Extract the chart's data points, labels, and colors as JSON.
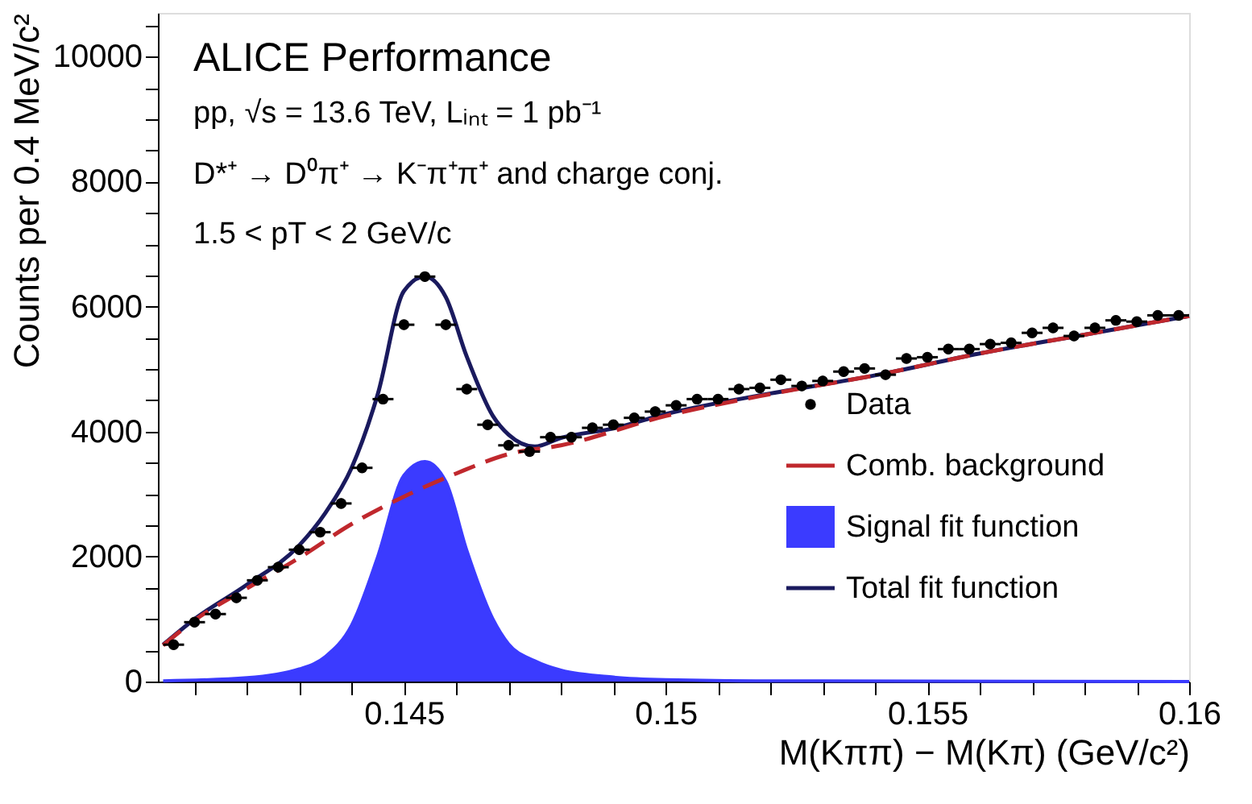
{
  "chart_data": {
    "type": "scatter",
    "xlabel": "M(Kππ) − M(Kπ) (GeV/c²)",
    "ylabel": "Counts per 0.4 MeV/c²",
    "annotations": [
      "ALICE Performance",
      "pp, √s = 13.6 TeV, Lᵢₙₜ = 1 pb⁻¹",
      "D*⁺ → D⁰π⁺ → K⁻π⁺π⁺ and charge conj.",
      "1.5 < pT < 2 GeV/c"
    ],
    "xlim": [
      0.1403,
      0.16
    ],
    "ylim": [
      0,
      10700
    ],
    "xticks": [
      {
        "value": 0.141,
        "label": null
      },
      {
        "value": 0.142,
        "label": null
      },
      {
        "value": 0.143,
        "label": null
      },
      {
        "value": 0.144,
        "label": null
      },
      0.145,
      {
        "value": 0.146,
        "label": null
      },
      {
        "value": 0.147,
        "label": null
      },
      {
        "value": 0.148,
        "label": null
      },
      {
        "value": 0.149,
        "label": null
      },
      0.15,
      {
        "value": 0.151,
        "label": null
      },
      {
        "value": 0.152,
        "label": null
      },
      {
        "value": 0.153,
        "label": null
      },
      {
        "value": 0.154,
        "label": null
      },
      0.155,
      {
        "value": 0.156,
        "label": null
      },
      {
        "value": 0.157,
        "label": null
      },
      {
        "value": 0.158,
        "label": null
      },
      {
        "value": 0.159,
        "label": null
      },
      0.16
    ],
    "yticks": [
      0,
      {
        "value": 500,
        "label": null
      },
      {
        "value": 1000,
        "label": null
      },
      {
        "value": 1500,
        "label": null
      },
      2000,
      {
        "value": 2500,
        "label": null
      },
      {
        "value": 3000,
        "label": null
      },
      {
        "value": 3500,
        "label": null
      },
      4000,
      {
        "value": 4500,
        "label": null
      },
      {
        "value": 5000,
        "label": null
      },
      {
        "value": 5500,
        "label": null
      },
      6000,
      {
        "value": 6500,
        "label": null
      },
      {
        "value": 7000,
        "label": null
      },
      {
        "value": 7500,
        "label": null
      },
      8000,
      {
        "value": 8500,
        "label": null
      },
      {
        "value": 9000,
        "label": null
      },
      {
        "value": 9500,
        "label": null
      },
      10000,
      {
        "value": 10500,
        "label": null
      }
    ],
    "grid": false,
    "legend": "bottom right",
    "series": [
      {
        "name": "Data",
        "type": "scatter",
        "marker": "circle",
        "color": "#000000",
        "x": [
          0.1406,
          0.141,
          0.1414,
          0.1418,
          0.1422,
          0.1426,
          0.143,
          0.1434,
          0.1438,
          0.1442,
          0.1446,
          0.145,
          0.1454,
          0.1458,
          0.1462,
          0.1466,
          0.147,
          0.1474,
          0.1478,
          0.1482,
          0.1486,
          0.149,
          0.1494,
          0.1498,
          0.1502,
          0.1506,
          0.151,
          0.1514,
          0.1518,
          0.1522,
          0.1526,
          0.153,
          0.1534,
          0.1538,
          0.1542,
          0.1546,
          0.155,
          0.1554,
          0.1558,
          0.1562,
          0.1566,
          0.157,
          0.1574,
          0.1578,
          0.1582,
          0.1586,
          0.159,
          0.1594,
          0.1598
        ],
        "values": [
          590,
          950,
          1080,
          1340,
          1620,
          1830,
          2110,
          2390,
          2850,
          3420,
          4520,
          5710,
          6480,
          5710,
          4680,
          4110,
          3780,
          3680,
          3910,
          3910,
          4060,
          4110,
          4220,
          4320,
          4420,
          4520,
          4520,
          4680,
          4700,
          4830,
          4730,
          4810,
          4960,
          5010,
          4910,
          5170,
          5190,
          5320,
          5320,
          5400,
          5420,
          5580,
          5660,
          5530,
          5660,
          5780,
          5760,
          5860,
          5860
        ],
        "errors": [
          80,
          80,
          80,
          80,
          80,
          80,
          80,
          80,
          80,
          80,
          80,
          80,
          80,
          80,
          80,
          80,
          80,
          80,
          80,
          80,
          80,
          80,
          80,
          80,
          80,
          80,
          80,
          80,
          80,
          80,
          80,
          80,
          80,
          80,
          80,
          80,
          80,
          80,
          80,
          80,
          80,
          80,
          80,
          80,
          80,
          80,
          80,
          80,
          80
        ],
        "xerrors": [
          0.0002,
          0.0002,
          0.0002,
          0.0002,
          0.0002,
          0.0002,
          0.0002,
          0.0002,
          0.0002,
          0.0002,
          0.0002,
          0.0002,
          0.0002,
          0.0002,
          0.0002,
          0.0002,
          0.0002,
          0.0002,
          0.0002,
          0.0002,
          0.0002,
          0.0002,
          0.0002,
          0.0002,
          0.0002,
          0.0002,
          0.0002,
          0.0002,
          0.0002,
          0.0002,
          0.0002,
          0.0002,
          0.0002,
          0.0002,
          0.0002,
          0.0002,
          0.0002,
          0.0002,
          0.0002,
          0.0002,
          0.0002,
          0.0002,
          0.0002,
          0.0002,
          0.0002,
          0.0002,
          0.0002,
          0.0002,
          0.0002
        ]
      },
      {
        "name": "Comb. background",
        "type": "line",
        "line_style": "dashed",
        "color": "#c0282d",
        "x": [
          0.1404,
          0.141,
          0.142,
          0.143,
          0.144,
          0.145,
          0.146,
          0.147,
          0.148,
          0.15,
          0.152,
          0.154,
          0.156,
          0.158,
          0.16
        ],
        "values": [
          580,
          980,
          1490,
          1980,
          2520,
          2960,
          3330,
          3640,
          3780,
          4250,
          4600,
          4900,
          5250,
          5550,
          5850
        ]
      },
      {
        "name": "Signal fit function",
        "type": "area",
        "color": "#3b3bff",
        "x": [
          0.1404,
          0.142,
          0.143,
          0.1435,
          0.144,
          0.1445,
          0.145,
          0.1454,
          0.1458,
          0.1462,
          0.1467,
          0.147,
          0.1475,
          0.148,
          0.149,
          0.15,
          0.152,
          0.16
        ],
        "values": [
          10,
          60,
          200,
          400,
          900,
          2000,
          3300,
          3520,
          3200,
          2100,
          1000,
          600,
          330,
          180,
          70,
          30,
          10,
          0
        ]
      },
      {
        "name": "Total fit function",
        "type": "line",
        "line_style": "solid",
        "color": "#1a1a5e",
        "x": [
          0.1404,
          0.141,
          0.142,
          0.143,
          0.1435,
          0.144,
          0.1445,
          0.145,
          0.1454,
          0.1458,
          0.1462,
          0.1467,
          0.147,
          0.1475,
          0.148,
          0.149,
          0.15,
          0.152,
          0.154,
          0.156,
          0.158,
          0.16
        ],
        "values": [
          590,
          1000,
          1550,
          2180,
          2700,
          3420,
          4600,
          6250,
          6480,
          6150,
          5200,
          4250,
          3950,
          3760,
          3900,
          4050,
          4280,
          4610,
          4900,
          5250,
          5550,
          5850
        ]
      }
    ]
  }
}
